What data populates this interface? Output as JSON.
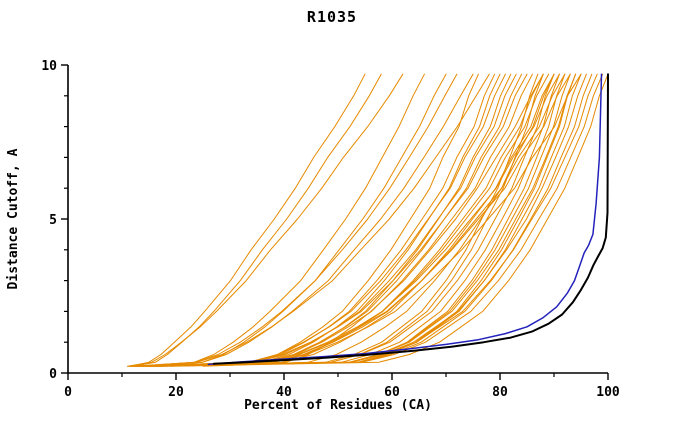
{
  "chart_data": {
    "type": "line",
    "title": "R1035",
    "xlabel": "Percent of Residues (CA)",
    "ylabel": "Distance Cutoff, A",
    "xlim": [
      0,
      100
    ],
    "ylim": [
      0,
      10
    ],
    "x_ticks": [
      0,
      20,
      40,
      60,
      80,
      100
    ],
    "x_minor_ticks": [
      10,
      30,
      50,
      70,
      90
    ],
    "y_ticks": [
      0,
      5,
      10
    ],
    "y_minor_ticks": [
      1,
      2,
      3,
      4,
      6,
      7,
      8,
      9
    ],
    "grid": false,
    "legend": "none",
    "colors": {
      "orange": "#e68a00",
      "black": "#000000",
      "blue": "#2323bb"
    },
    "y_levels": [
      0.35,
      0.6,
      1,
      1.5,
      2,
      3,
      4,
      5,
      6,
      7,
      8,
      9,
      9.7
    ],
    "series": [
      {
        "color": "orange",
        "start": [
          11.5,
          0.22
        ],
        "x": [
          15,
          17.2,
          19.7,
          22.8,
          25.3,
          30.1,
          33.9,
          38.2,
          42.1,
          45.5,
          49.4,
          52.9,
          55
        ]
      },
      {
        "color": "orange",
        "start": [
          12,
          0.22
        ],
        "x": [
          16.2,
          18.4,
          21.1,
          24.3,
          27,
          31.9,
          36,
          40.5,
          44.5,
          48.1,
          52.2,
          55.8,
          58
        ]
      },
      {
        "color": "orange",
        "start": [
          11,
          0.22
        ],
        "x": [
          15.5,
          18,
          21,
          24.5,
          27.5,
          33,
          37.5,
          42.5,
          47,
          51,
          55.5,
          59.5,
          62
        ]
      },
      {
        "color": "orange",
        "start": [
          13,
          0.22
        ],
        "x": [
          23.4,
          27,
          30.6,
          34.3,
          37.4,
          43.1,
          47.3,
          51.4,
          55.1,
          58.2,
          61.3,
          63.9,
          66
        ]
      },
      {
        "color": "orange",
        "start": [
          14,
          0.22
        ],
        "x": [
          24.9,
          28.8,
          32.6,
          36.5,
          39.8,
          45.8,
          50.2,
          54.6,
          58.5,
          61.8,
          65.1,
          67.8,
          70
        ]
      },
      {
        "color": "orange",
        "start": [
          12.5,
          0.22
        ],
        "x": [
          23.6,
          27.8,
          31.9,
          36,
          39.6,
          45.8,
          50.8,
          55.5,
          59.6,
          63.2,
          66.7,
          69.8,
          72
        ]
      },
      {
        "color": "orange",
        "start": [
          13.5,
          0.22
        ],
        "x": [
          25,
          29.3,
          33.5,
          37.8,
          41.5,
          48.2,
          53,
          57.9,
          62.2,
          65.9,
          69.5,
          72.7,
          75
        ]
      },
      {
        "color": "orange",
        "start": [
          15,
          0.22
        ],
        "x": [
          34,
          38.8,
          43,
          47.2,
          50.8,
          55.6,
          59.8,
          63.4,
          67,
          69.4,
          72.4,
          74.2,
          76
        ]
      },
      {
        "color": "orange",
        "start": [
          11.8,
          0.22
        ],
        "x": [
          23.9,
          28.5,
          33.1,
          37.7,
          41.7,
          49,
          54.2,
          59.5,
          64.1,
          68.1,
          72.1,
          75.6,
          78
        ]
      },
      {
        "color": "orange",
        "start": [
          14.5,
          0.22
        ],
        "x": [
          34.2,
          39.3,
          43.8,
          48.3,
          52.1,
          57.2,
          61.7,
          65.6,
          69.4,
          72,
          75.2,
          77.1,
          79
        ]
      },
      {
        "color": "orange",
        "start": [
          16,
          0.22
        ],
        "x": [
          35.9,
          40.9,
          45.4,
          49.8,
          53.5,
          58.6,
          63,
          66.8,
          70.6,
          73.1,
          76.2,
          78.1,
          80
        ]
      },
      {
        "color": "orange",
        "start": [
          12.2,
          0.22
        ],
        "x": [
          33.4,
          38.8,
          43.6,
          48.4,
          52.4,
          57.9,
          62.6,
          66.7,
          70.8,
          73.5,
          76.9,
          79,
          81
        ]
      },
      {
        "color": "orange",
        "start": [
          17,
          0.22
        ],
        "x": [
          37.2,
          42.3,
          46.8,
          51.3,
          55.1,
          60.2,
          64.7,
          68.6,
          72.4,
          75,
          78.2,
          80.1,
          82
        ]
      },
      {
        "color": "orange",
        "start": [
          13.2,
          0.22
        ],
        "x": [
          34.7,
          40.2,
          45.1,
          49.9,
          54,
          59.5,
          64.4,
          68.5,
          72.7,
          75.4,
          78.9,
          80.9,
          83
        ]
      },
      {
        "color": "orange",
        "start": [
          15.5,
          0.22
        ],
        "x": [
          36.4,
          41.8,
          46.6,
          51.4,
          55.4,
          60.9,
          65.6,
          69.7,
          73.8,
          76.5,
          79.9,
          82,
          84
        ]
      },
      {
        "color": "orange",
        "start": [
          11.3,
          0.22
        ],
        "x": [
          33.9,
          39.7,
          44.9,
          50,
          54.3,
          60.2,
          65.3,
          69.7,
          74.1,
          77,
          80.6,
          82.8,
          85
        ]
      },
      {
        "color": "orange",
        "start": [
          14.8,
          0.22
        ],
        "x": [
          36.3,
          42,
          47,
          51.9,
          56.2,
          61.9,
          66.8,
          71.1,
          75.4,
          78.2,
          81.7,
          83.9,
          86
        ]
      },
      {
        "color": "orange",
        "start": [
          12.8,
          0.22
        ],
        "x": [
          47.8,
          53,
          58.1,
          61.8,
          65.5,
          70,
          73.7,
          76.6,
          79.6,
          81.8,
          84,
          85.5,
          87
        ]
      },
      {
        "color": "orange",
        "start": [
          16.5,
          0.22
        ],
        "x": [
          38.3,
          44,
          49,
          53.9,
          58.2,
          63.9,
          68.8,
          73.1,
          77.4,
          80.2,
          83.7,
          85.9,
          88
        ]
      },
      {
        "color": "orange",
        "start": [
          13.8,
          0.22
        ],
        "x": [
          48.8,
          54,
          59.1,
          62.8,
          66.5,
          71,
          74.7,
          77.6,
          80.6,
          82.8,
          85,
          86.5,
          88
        ]
      },
      {
        "color": "orange",
        "start": [
          15.2,
          0.22
        ],
        "x": [
          37.9,
          43.7,
          48.9,
          54,
          58.3,
          64.2,
          69.3,
          73.7,
          78.1,
          81,
          84.6,
          86.8,
          89
        ]
      },
      {
        "color": "orange",
        "start": [
          11.6,
          0.22
        ],
        "x": [
          48.7,
          54.1,
          59.6,
          63.5,
          67.4,
          72.1,
          76,
          79.1,
          82.2,
          84.5,
          86.9,
          88.4,
          90
        ]
      },
      {
        "color": "orange",
        "start": [
          17.5,
          0.22
        ],
        "x": [
          39.6,
          45.4,
          50.4,
          55.4,
          59.8,
          65.5,
          70.6,
          74.9,
          79.2,
          82.1,
          85.7,
          87.8,
          90
        ]
      },
      {
        "color": "orange",
        "start": [
          14.2,
          0.22
        ],
        "x": [
          50.7,
          56,
          61.4,
          65.2,
          69,
          73.5,
          77.3,
          80.4,
          83.4,
          85.7,
          88,
          89.5,
          91
        ]
      },
      {
        "color": "orange",
        "start": [
          12.4,
          0.22
        ],
        "x": [
          36.4,
          42.6,
          48.1,
          53.6,
          58.2,
          64.5,
          69.9,
          74.6,
          79.3,
          82.4,
          86.3,
          88.7,
          91
        ]
      },
      {
        "color": "orange",
        "start": [
          16.2,
          0.22
        ],
        "x": [
          52.3,
          57.5,
          62.8,
          66.5,
          70.3,
          74.8,
          78.5,
          81.5,
          84.5,
          86.8,
          89,
          90.5,
          92
        ]
      },
      {
        "color": "orange",
        "start": [
          13.6,
          0.22
        ],
        "x": [
          37.4,
          43.6,
          49.1,
          54.6,
          59.2,
          65.5,
          70.9,
          75.6,
          80.3,
          83.4,
          87.3,
          89.7,
          92
        ]
      },
      {
        "color": "orange",
        "start": [
          15.8,
          0.22
        ],
        "x": [
          52.2,
          57.6,
          63,
          66.8,
          70.7,
          75.3,
          79.1,
          82.2,
          85.3,
          87.6,
          89.9,
          91.5,
          93
        ]
      },
      {
        "color": "orange",
        "start": [
          11.4,
          0.22
        ],
        "x": [
          36.3,
          42.8,
          48.5,
          54.1,
          59,
          65.5,
          71.1,
          76,
          80.9,
          84.1,
          88.1,
          90.6,
          93
        ]
      },
      {
        "color": "orange",
        "start": [
          18,
          0.22
        ],
        "x": [
          53.7,
          59,
          64.4,
          68.2,
          72,
          76.5,
          80.3,
          83.4,
          86.4,
          88.7,
          91,
          92.5,
          94
        ]
      },
      {
        "color": "orange",
        "start": [
          14.6,
          0.22
        ],
        "x": [
          52.1,
          57.7,
          63.2,
          67.1,
          71.1,
          75.8,
          79.8,
          82.9,
          86.1,
          88.5,
          90.8,
          92.4,
          94
        ]
      },
      {
        "color": "orange",
        "start": [
          12.6,
          0.22
        ],
        "x": [
          37.6,
          44.2,
          49.9,
          55.6,
          60.6,
          67.1,
          72.9,
          77.8,
          82.7,
          86,
          90.1,
          92.5,
          95
        ]
      },
      {
        "color": "orange",
        "start": [
          16.8,
          0.22
        ],
        "x": [
          53.7,
          59.1,
          64.6,
          68.5,
          72.4,
          77.1,
          81,
          84.1,
          87.2,
          89.5,
          91.9,
          93.4,
          95
        ]
      },
      {
        "color": "orange",
        "start": [
          13.4,
          0.22
        ],
        "x": [
          52.5,
          58.3,
          64,
          68.1,
          72.2,
          77.1,
          81.2,
          84.9,
          87.8,
          90.3,
          92.7,
          94.4,
          96
        ]
      },
      {
        "color": "orange",
        "start": [
          15.4,
          0.22
        ],
        "x": [
          54.1,
          59.7,
          65.4,
          69.5,
          73.5,
          78.4,
          82.4,
          85.7,
          88.9,
          91.3,
          93.8,
          95.4,
          97
        ]
      },
      {
        "color": "orange",
        "start": [
          11.2,
          0.22
        ],
        "x": [
          52.4,
          58.4,
          64.5,
          68.8,
          73.1,
          78.2,
          82.5,
          85.9,
          89.4,
          92,
          94.6,
          96.3,
          98
        ]
      },
      {
        "color": "orange",
        "start": [
          14.4,
          0.22
        ],
        "x": [
          54.5,
          60.4,
          66.2,
          70.4,
          74.6,
          79.7,
          83.9,
          87.2,
          90.6,
          93.1,
          95.6,
          97.3,
          99
        ]
      },
      {
        "color": "orange",
        "start": [
          19,
          0.22
        ],
        "x": [
          57.6,
          63.2,
          68.8,
          72.8,
          76.8,
          81.6,
          85.6,
          88.8,
          92,
          94.4,
          96.8,
          98.4,
          100
        ]
      },
      {
        "color": "orange",
        "start": [
          25,
          0.22
        ],
        "x": [
          44.5,
          49.7,
          54.3,
          58.8,
          62.7,
          67.9,
          72.5,
          76.4,
          80.3,
          82.9,
          86.1,
          88.1,
          90
        ]
      },
      {
        "color": "orange",
        "start": [
          30,
          0.25
        ],
        "x": [
          40.4,
          44.5,
          48.6,
          52.6,
          56.1,
          62.2,
          67.1,
          71.8,
          75.8,
          79.3,
          82.8,
          85.7,
          88
        ]
      },
      {
        "color": "blue",
        "points": [
          [
            26,
            0.28
          ],
          [
            32,
            0.36
          ],
          [
            39,
            0.44
          ],
          [
            47,
            0.53
          ],
          [
            55,
            0.63
          ],
          [
            63,
            0.78
          ],
          [
            70,
            0.93
          ],
          [
            76,
            1.08
          ],
          [
            81,
            1.28
          ],
          [
            85,
            1.5
          ],
          [
            88,
            1.8
          ],
          [
            90.5,
            2.15
          ],
          [
            92.5,
            2.6
          ],
          [
            93.8,
            3.0
          ],
          [
            94.8,
            3.5
          ],
          [
            95.6,
            3.9
          ],
          [
            96.4,
            4.15
          ],
          [
            97.2,
            4.5
          ],
          [
            97.8,
            5.5
          ],
          [
            98.4,
            7.0
          ],
          [
            98.8,
            9.7
          ]
        ]
      },
      {
        "color": "black",
        "points": [
          [
            27,
            0.3
          ],
          [
            33,
            0.35
          ],
          [
            40,
            0.42
          ],
          [
            48,
            0.5
          ],
          [
            56,
            0.6
          ],
          [
            64,
            0.72
          ],
          [
            71,
            0.85
          ],
          [
            77,
            1.0
          ],
          [
            82,
            1.15
          ],
          [
            86,
            1.35
          ],
          [
            89,
            1.6
          ],
          [
            91.5,
            1.9
          ],
          [
            93.5,
            2.3
          ],
          [
            95,
            2.7
          ],
          [
            96.3,
            3.1
          ],
          [
            97.3,
            3.5
          ],
          [
            98.2,
            3.8
          ],
          [
            99,
            4.05
          ],
          [
            99.6,
            4.4
          ],
          [
            99.9,
            5.2
          ],
          [
            100,
            9.7
          ]
        ]
      }
    ]
  }
}
